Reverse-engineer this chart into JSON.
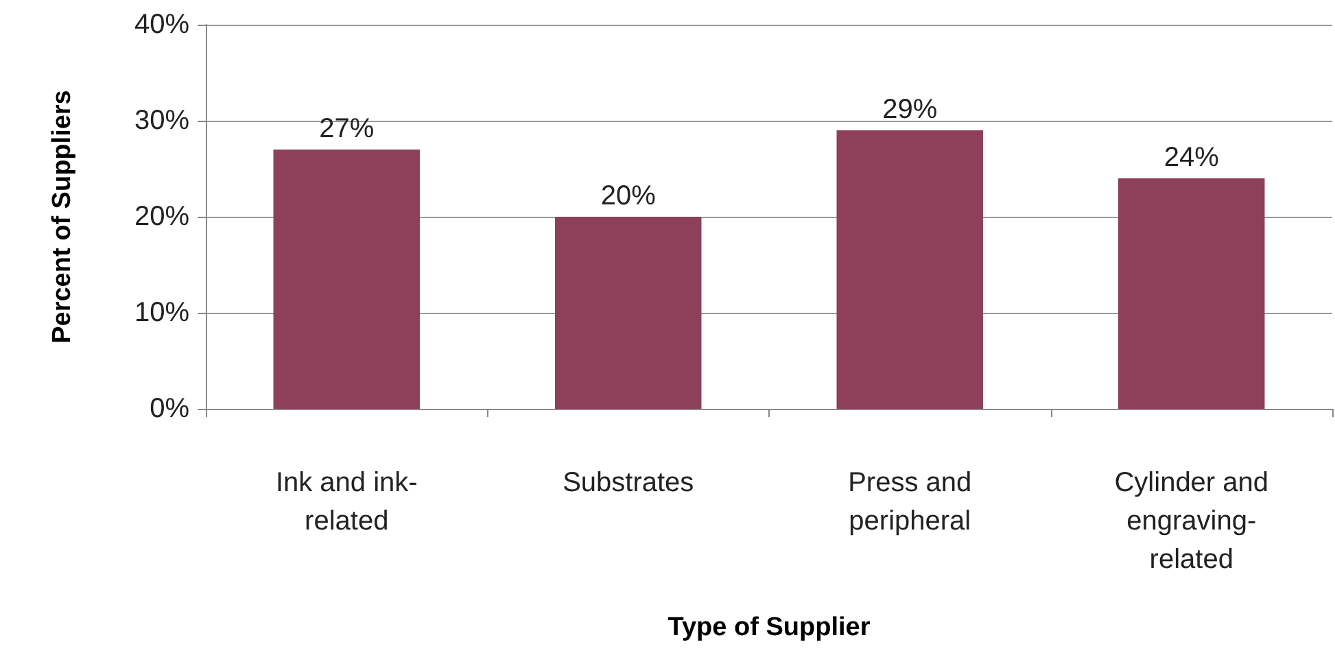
{
  "chart_data": {
    "type": "bar",
    "xlabel": "Type of Supplier",
    "ylabel": "Percent of Suppliers",
    "categories": [
      "Ink and ink-related",
      "Substrates",
      "Press and peripheral",
      "Cylinder and engraving-related"
    ],
    "values": [
      27,
      20,
      29,
      24
    ],
    "color": "#8e3f5a",
    "value_labels": [
      "27%",
      "20%",
      "29%",
      "24%"
    ],
    "ylim": [
      0,
      40
    ],
    "yticks": [
      {
        "value": 0,
        "label": "0%"
      },
      {
        "value": 10,
        "label": "10%"
      },
      {
        "value": 20,
        "label": "20%"
      },
      {
        "value": 30,
        "label": "30%"
      },
      {
        "value": 40,
        "label": "40%"
      }
    ],
    "grid": "y"
  }
}
